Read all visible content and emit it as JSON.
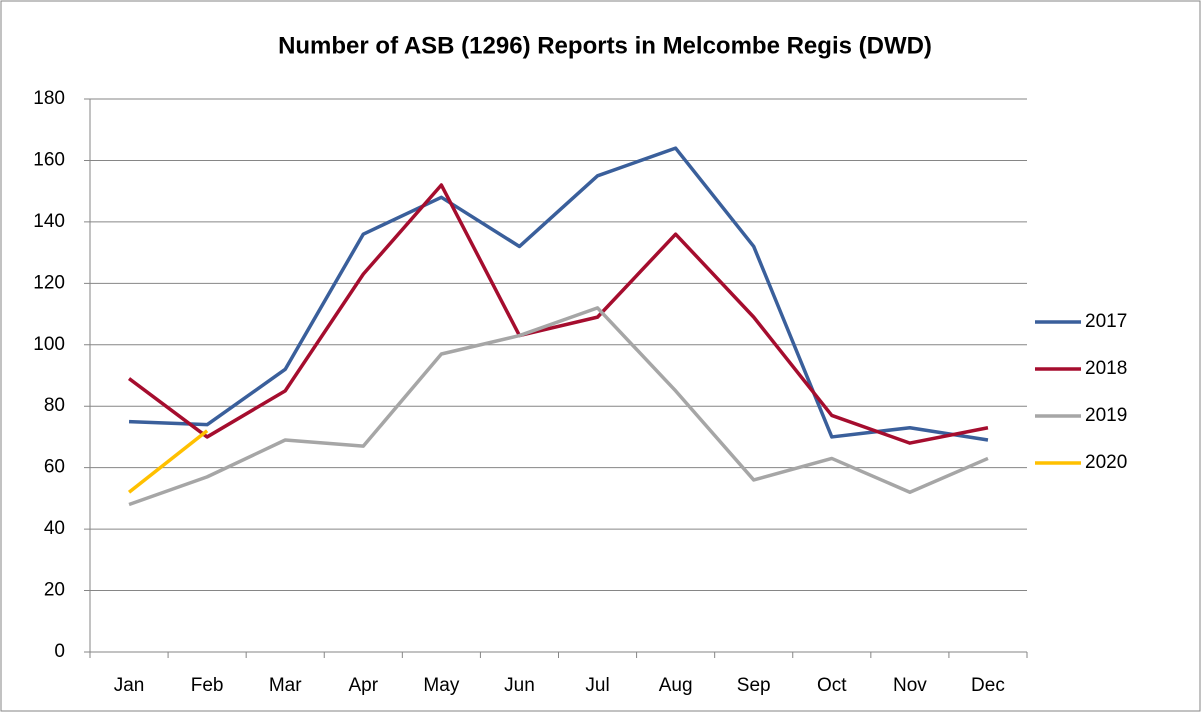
{
  "chart_data": {
    "type": "line",
    "title": "Number of ASB (1296) Reports in Melcombe Regis (DWD)",
    "categories": [
      "Jan",
      "Feb",
      "Mar",
      "Apr",
      "May",
      "Jun",
      "Jul",
      "Aug",
      "Sep",
      "Oct",
      "Nov",
      "Dec"
    ],
    "series": [
      {
        "name": "2017",
        "color": "#3a5f9b",
        "values": [
          75,
          74,
          92,
          136,
          148,
          132,
          155,
          164,
          132,
          70,
          73,
          69
        ]
      },
      {
        "name": "2018",
        "color": "#a50d2e",
        "values": [
          89,
          70,
          85,
          123,
          152,
          103,
          109,
          136,
          109,
          77,
          68,
          73
        ]
      },
      {
        "name": "2019",
        "color": "#a6a6a6",
        "values": [
          48,
          57,
          69,
          67,
          97,
          103,
          112,
          85,
          56,
          63,
          52,
          63
        ]
      },
      {
        "name": "2020",
        "color": "#ffc000",
        "values": [
          52,
          72,
          null,
          null,
          null,
          null,
          null,
          null,
          null,
          null,
          null,
          null
        ]
      }
    ],
    "ylim": [
      0,
      180
    ],
    "yticks": [
      0,
      20,
      40,
      60,
      80,
      100,
      120,
      140,
      160,
      180
    ],
    "grid": true,
    "legend": "right"
  }
}
